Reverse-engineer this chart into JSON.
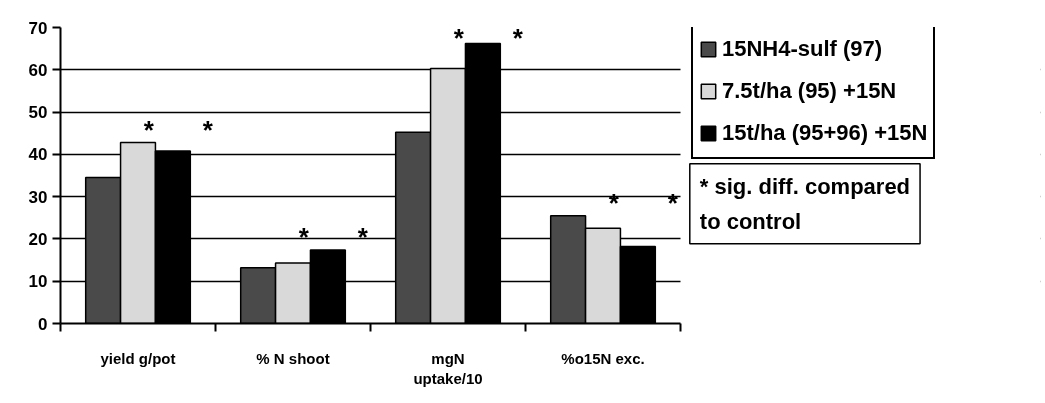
{
  "chart_data": {
    "type": "bar",
    "categories": [
      "yield g/pot",
      "% N shoot",
      "mgN\nuptake/10",
      "%o15N exc."
    ],
    "series": [
      {
        "name": "15NH4-sulf (97)",
        "color": "#4a4a4a",
        "values": [
          34.5,
          13.2,
          45.2,
          25.5
        ]
      },
      {
        "name": "7.5t/ha (95) +15N",
        "color": "#d9d9d9",
        "values": [
          42.8,
          14.3,
          60.3,
          22.5
        ]
      },
      {
        "name": "15t/ha (95+96) +15N",
        "color": "#000000",
        "values": [
          40.8,
          17.4,
          66.2,
          18.2
        ]
      }
    ],
    "ylim": [
      0,
      70
    ],
    "yticks": [
      0,
      10,
      20,
      30,
      40,
      50,
      60,
      70
    ],
    "grid": "y",
    "legend": "top right",
    "annotations": [
      "*",
      "*",
      "*",
      "*",
      "*",
      "*",
      "*",
      "*",
      "* sig. diff. compared\n to control"
    ]
  }
}
